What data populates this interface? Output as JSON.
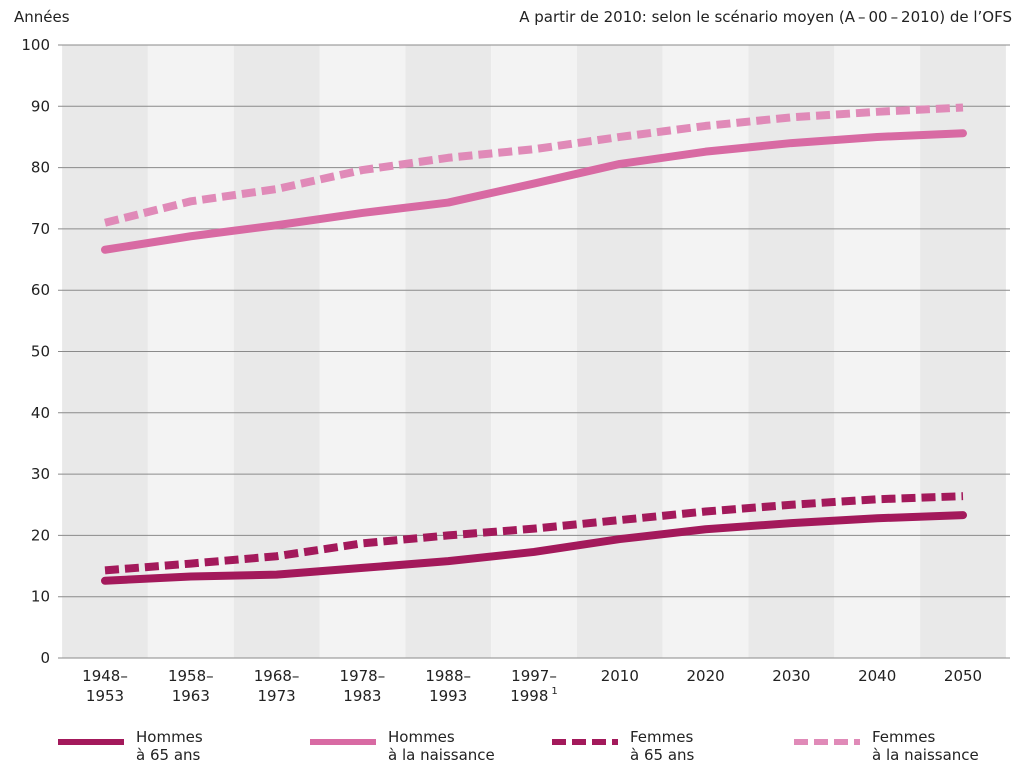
{
  "chart_data": {
    "type": "line",
    "ylabel": "Années",
    "note": "A partir de 2010: selon le scénario moyen (A – 00 – 2010) de l’OFS",
    "ylim": [
      0,
      100
    ],
    "yticks": [
      0,
      10,
      20,
      30,
      40,
      50,
      60,
      70,
      80,
      90,
      100
    ],
    "grid": true,
    "legend_position": "bottom",
    "categories": [
      {
        "line1": "1948–",
        "line2": "1953",
        "sup": ""
      },
      {
        "line1": "1958–",
        "line2": "1963",
        "sup": ""
      },
      {
        "line1": "1968–",
        "line2": "1973",
        "sup": ""
      },
      {
        "line1": "1978–",
        "line2": "1983",
        "sup": ""
      },
      {
        "line1": "1988–",
        "line2": "1993",
        "sup": ""
      },
      {
        "line1": "1997–",
        "line2": "1998",
        "sup": "1"
      },
      {
        "line1": "2010",
        "line2": "",
        "sup": ""
      },
      {
        "line1": "2020",
        "line2": "",
        "sup": ""
      },
      {
        "line1": "2030",
        "line2": "",
        "sup": ""
      },
      {
        "line1": "2040",
        "line2": "",
        "sup": ""
      },
      {
        "line1": "2050",
        "line2": "",
        "sup": ""
      }
    ],
    "series": [
      {
        "name_line1": "Hommes",
        "name_line2": "à 65 ans",
        "color": "#a3195b",
        "dashed": false,
        "values": [
          12.6,
          13.3,
          13.6,
          14.7,
          15.8,
          17.3,
          19.4,
          21.0,
          22.0,
          22.8,
          23.3
        ]
      },
      {
        "name_line1": "Hommes",
        "name_line2": "à la naissance",
        "color": "#d86aa3",
        "dashed": false,
        "values": [
          66.6,
          68.8,
          70.6,
          72.6,
          74.3,
          77.4,
          80.6,
          82.6,
          84.0,
          85.0,
          85.6
        ]
      },
      {
        "name_line1": "Femmes",
        "name_line2": "à 65 ans",
        "color": "#a3195b",
        "dashed": true,
        "values": [
          14.3,
          15.4,
          16.6,
          18.7,
          20.0,
          21.1,
          22.5,
          23.9,
          25.0,
          25.9,
          26.4
        ]
      },
      {
        "name_line1": "Femmes",
        "name_line2": "à la naissance",
        "color": "#e08ab8",
        "dashed": true,
        "values": [
          71.0,
          74.5,
          76.5,
          79.6,
          81.6,
          83.0,
          85.0,
          86.8,
          88.2,
          89.1,
          89.8
        ]
      }
    ]
  }
}
